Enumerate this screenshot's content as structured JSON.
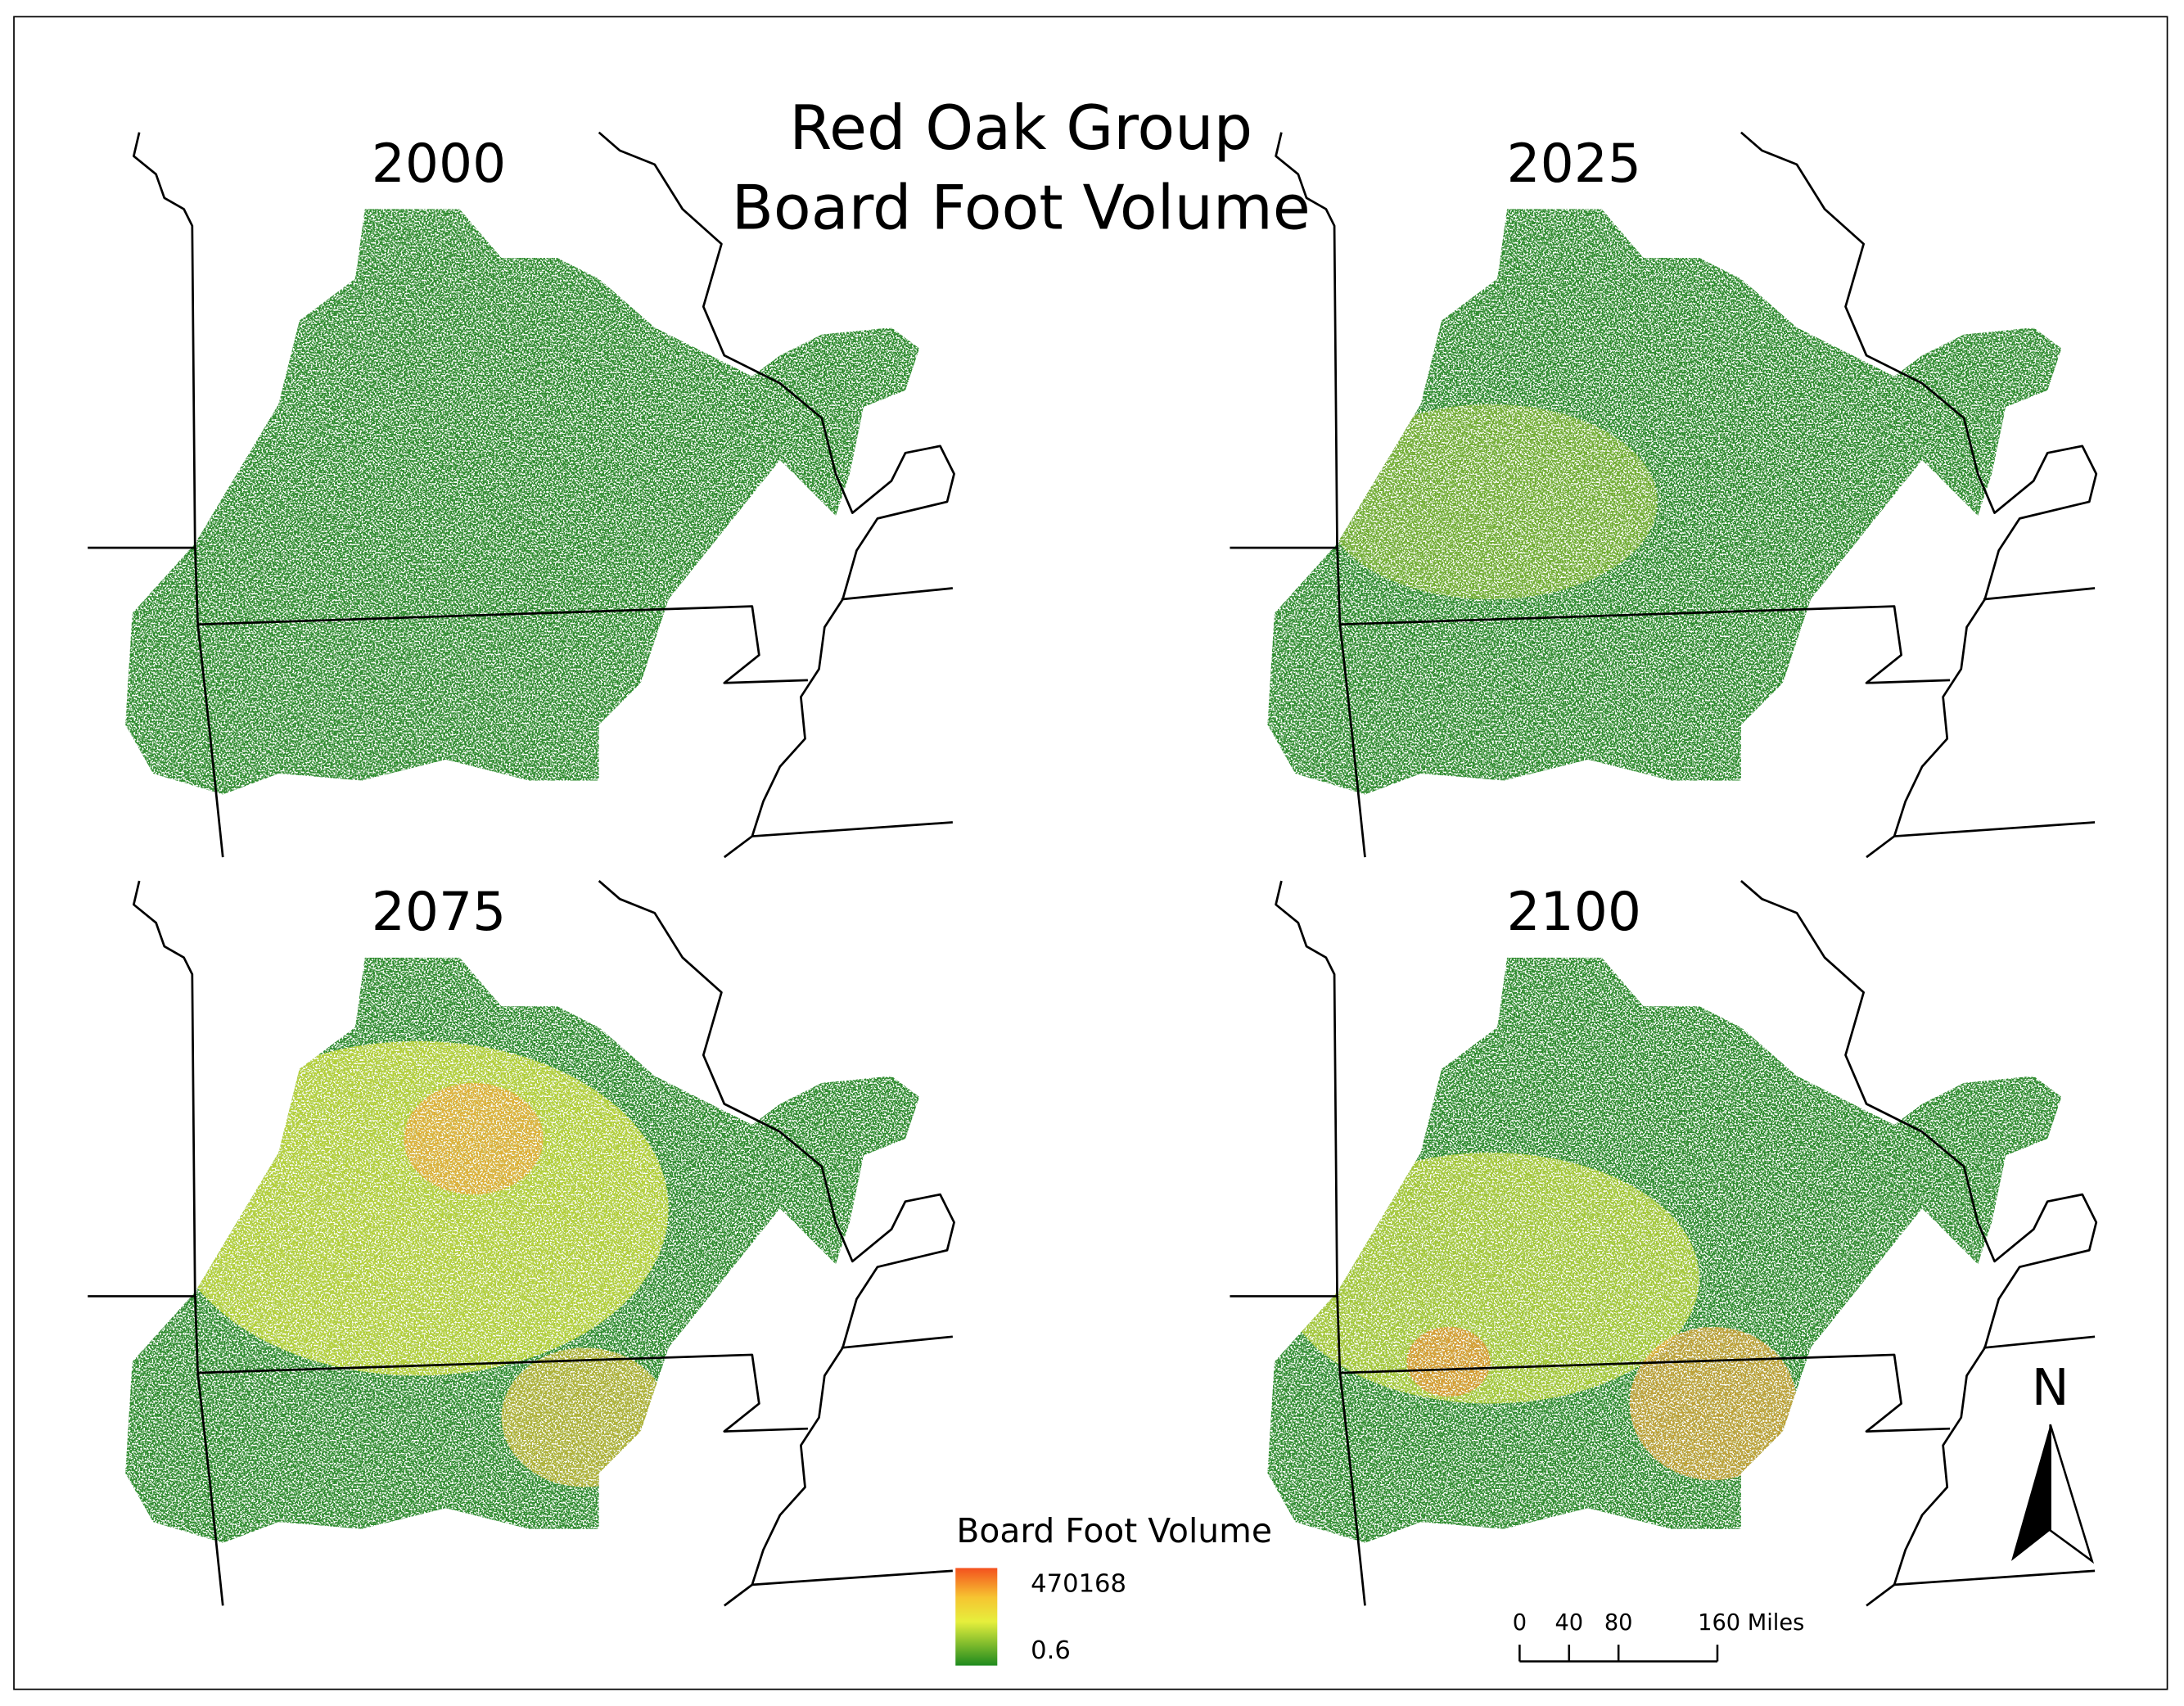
{
  "title": [
    "Red Oak Group",
    "Board Foot Volume"
  ],
  "panels": [
    "2000",
    "2025",
    "2075",
    "2100"
  ],
  "legend": {
    "title": "Board Foot Volume",
    "max": 470168,
    "min": 0.6
  },
  "scale_bar": {
    "ticks": [
      0,
      40,
      80,
      {
        "value": 160,
        "label": "160 Miles"
      }
    ]
  },
  "north_arrow": "N"
}
